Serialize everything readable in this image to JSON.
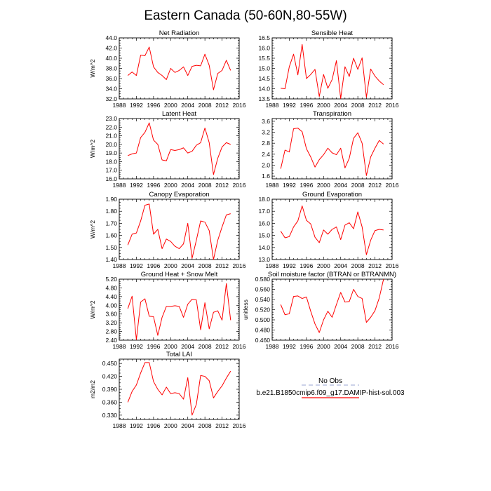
{
  "figure": {
    "title": "Eastern Canada (50-60N,80-55W)"
  },
  "legend": {
    "entries": [
      {
        "label": "No Obs",
        "color": "#aeb7dc",
        "dash": true
      },
      {
        "label": "b.e21.B1850cmip6.f09_g17.DAMIP-hist-sol.003",
        "color": "#ff0000",
        "dash": false
      }
    ]
  },
  "chart_data": [
    {
      "type": "line",
      "title": "Net Radiation",
      "xlabel": "",
      "ylabel": "W/m^2",
      "xlim": [
        1988,
        2016
      ],
      "xticks": [
        1988,
        1992,
        1996,
        2000,
        2004,
        2008,
        2012,
        2016
      ],
      "ylim": [
        32.0,
        44.0
      ],
      "yticks": [
        "32.0",
        "34.0",
        "36.0",
        "38.0",
        "40.0",
        "42.0",
        "44.0"
      ],
      "grid": false,
      "x": [
        1990,
        1991,
        1992,
        1993,
        1994,
        1995,
        1996,
        1997,
        1998,
        1999,
        2000,
        2001,
        2002,
        2003,
        2004,
        2005,
        2006,
        2007,
        2008,
        2009,
        2010,
        2011,
        2012,
        2013,
        2014
      ],
      "series": [
        {
          "color": "#ff0000",
          "values": [
            36.6,
            37.3,
            36.6,
            40.6,
            40.5,
            42.2,
            38.3,
            37.2,
            36.6,
            35.8,
            38.0,
            37.2,
            37.6,
            38.3,
            36.6,
            38.4,
            38.6,
            38.5,
            40.8,
            38.6,
            33.8,
            37.0,
            37.6,
            39.6,
            37.6
          ]
        }
      ]
    },
    {
      "type": "line",
      "title": "Sensible Heat",
      "xlabel": "",
      "ylabel": "",
      "xlim": [
        1988,
        2016
      ],
      "xticks": [
        1988,
        1992,
        1996,
        2000,
        2004,
        2008,
        2012,
        2016
      ],
      "ylim": [
        13.5,
        16.5
      ],
      "yticks": [
        "13.5",
        "14.0",
        "14.5",
        "15.0",
        "15.5",
        "16.0",
        "16.5"
      ],
      "grid": false,
      "x": [
        1990,
        1991,
        1992,
        1993,
        1994,
        1995,
        1996,
        1997,
        1998,
        1999,
        2000,
        2001,
        2002,
        2003,
        2004,
        2005,
        2006,
        2007,
        2008,
        2009,
        2010,
        2011,
        2012,
        2013,
        2014
      ],
      "series": [
        {
          "color": "#ff0000",
          "values": [
            14.02,
            14.0,
            15.08,
            15.7,
            14.68,
            16.18,
            14.5,
            14.7,
            14.95,
            13.62,
            14.7,
            14.02,
            14.45,
            15.38,
            13.52,
            15.08,
            14.6,
            15.5,
            14.95,
            15.52,
            13.58,
            14.97,
            14.62,
            14.38,
            14.2
          ]
        }
      ]
    },
    {
      "type": "line",
      "title": "Latent Heat",
      "xlabel": "",
      "ylabel": "W/m^2",
      "xlim": [
        1988,
        2016
      ],
      "xticks": [
        1988,
        1992,
        1996,
        2000,
        2004,
        2008,
        2012,
        2016
      ],
      "ylim": [
        16.0,
        23.0
      ],
      "yticks": [
        "16.0",
        "17.0",
        "18.0",
        "19.0",
        "20.0",
        "21.0",
        "22.0",
        "23.0"
      ],
      "grid": false,
      "x": [
        1990,
        1991,
        1992,
        1993,
        1994,
        1995,
        1996,
        1997,
        1998,
        1999,
        2000,
        2001,
        2002,
        2003,
        2004,
        2005,
        2006,
        2007,
        2008,
        2009,
        2010,
        2011,
        2012,
        2013,
        2014
      ],
      "series": [
        {
          "color": "#ff0000",
          "values": [
            18.7,
            18.9,
            19.0,
            20.8,
            21.4,
            22.5,
            20.5,
            20.0,
            18.2,
            18.1,
            19.4,
            19.3,
            19.4,
            19.6,
            19.0,
            19.2,
            19.9,
            20.2,
            21.9,
            20.2,
            16.5,
            18.4,
            19.7,
            20.2,
            20.0
          ]
        }
      ]
    },
    {
      "type": "line",
      "title": "Transpiration",
      "xlabel": "",
      "ylabel": "",
      "xlim": [
        1988,
        2016
      ],
      "xticks": [
        1988,
        1992,
        1996,
        2000,
        2004,
        2008,
        2012,
        2016
      ],
      "ylim": [
        1.5,
        3.7
      ],
      "yticks": [
        "1.6",
        "2.0",
        "2.4",
        "2.8",
        "3.2",
        "3.6"
      ],
      "grid": false,
      "x": [
        1990,
        1991,
        1992,
        1993,
        1994,
        1995,
        1996,
        1997,
        1998,
        1999,
        2000,
        2001,
        2002,
        2003,
        2004,
        2005,
        2006,
        2007,
        2008,
        2009,
        2010,
        2011,
        2012,
        2013,
        2014
      ],
      "series": [
        {
          "color": "#ff0000",
          "values": [
            1.87,
            2.55,
            2.48,
            3.33,
            3.35,
            3.22,
            2.6,
            2.3,
            1.93,
            2.2,
            2.38,
            2.62,
            2.45,
            2.38,
            2.62,
            1.9,
            2.25,
            2.98,
            3.18,
            2.8,
            1.62,
            2.3,
            2.62,
            2.9,
            2.77
          ]
        }
      ]
    },
    {
      "type": "line",
      "title": "Canopy Evaporation",
      "xlabel": "",
      "ylabel": "W/m^2",
      "xlim": [
        1988,
        2016
      ],
      "xticks": [
        1988,
        1992,
        1996,
        2000,
        2004,
        2008,
        2012,
        2016
      ],
      "ylim": [
        1.4,
        1.9
      ],
      "yticks": [
        "1.40",
        "1.50",
        "1.60",
        "1.70",
        "1.80",
        "1.90"
      ],
      "grid": false,
      "x": [
        1990,
        1991,
        1992,
        1993,
        1994,
        1995,
        1996,
        1997,
        1998,
        1999,
        2000,
        2001,
        2002,
        2003,
        2004,
        2005,
        2006,
        2007,
        2008,
        2009,
        2010,
        2011,
        2012,
        2013,
        2014
      ],
      "series": [
        {
          "color": "#ff0000",
          "values": [
            1.52,
            1.61,
            1.62,
            1.72,
            1.85,
            1.86,
            1.61,
            1.65,
            1.49,
            1.57,
            1.55,
            1.51,
            1.49,
            1.53,
            1.7,
            1.41,
            1.56,
            1.72,
            1.71,
            1.64,
            1.4,
            1.56,
            1.67,
            1.77,
            1.78
          ]
        }
      ]
    },
    {
      "type": "line",
      "title": "Ground Evaporation",
      "xlabel": "",
      "ylabel": "",
      "xlim": [
        1988,
        2016
      ],
      "xticks": [
        1988,
        1992,
        1996,
        2000,
        2004,
        2008,
        2012,
        2016
      ],
      "ylim": [
        13.0,
        18.0
      ],
      "yticks": [
        "13.0",
        "14.0",
        "15.0",
        "16.0",
        "17.0",
        "18.0"
      ],
      "grid": false,
      "x": [
        1990,
        1991,
        1992,
        1993,
        1994,
        1995,
        1996,
        1997,
        1998,
        1999,
        2000,
        2001,
        2002,
        2003,
        2004,
        2005,
        2006,
        2007,
        2008,
        2009,
        2010,
        2011,
        2012,
        2013,
        2014
      ],
      "series": [
        {
          "color": "#ff0000",
          "values": [
            15.35,
            14.8,
            14.9,
            15.7,
            16.2,
            17.45,
            16.25,
            15.95,
            14.85,
            14.4,
            15.45,
            15.1,
            15.5,
            15.7,
            14.65,
            15.85,
            16.05,
            15.55,
            16.95,
            15.7,
            13.4,
            14.6,
            15.4,
            15.5,
            15.45
          ]
        }
      ]
    },
    {
      "type": "line",
      "title": "Ground Heat + Snow Melt",
      "xlabel": "",
      "ylabel": "W/m^2",
      "xlim": [
        1988,
        2016
      ],
      "xticks": [
        1988,
        1992,
        1996,
        2000,
        2004,
        2008,
        2012,
        2016
      ],
      "ylim": [
        2.4,
        5.2
      ],
      "yticks": [
        "2.40",
        "2.80",
        "3.20",
        "3.60",
        "4.00",
        "4.40",
        "4.80",
        "5.20"
      ],
      "grid": false,
      "x": [
        1990,
        1991,
        1992,
        1993,
        1994,
        1995,
        1996,
        1997,
        1998,
        1999,
        2000,
        2001,
        2002,
        2003,
        2004,
        2005,
        2006,
        2007,
        2008,
        2009,
        2010,
        2011,
        2012,
        2013,
        2014
      ],
      "series": [
        {
          "color": "#ff0000",
          "values": [
            3.85,
            4.42,
            2.42,
            4.15,
            4.3,
            3.5,
            3.48,
            2.62,
            3.45,
            3.95,
            3.95,
            3.98,
            3.95,
            3.45,
            4.05,
            4.28,
            4.25,
            2.88,
            4.12,
            2.92,
            3.68,
            3.75,
            3.32,
            5.0,
            3.32
          ]
        }
      ]
    },
    {
      "type": "line",
      "title": "Soil moisture factor (BTRAN or BTRANMN)",
      "xlabel": "",
      "ylabel": "unitless",
      "xlim": [
        1988,
        2016
      ],
      "xticks": [
        1988,
        1992,
        1996,
        2000,
        2004,
        2008,
        2012,
        2016
      ],
      "ylim": [
        0.46,
        0.58
      ],
      "yticks": [
        "0.460",
        "0.480",
        "0.500",
        "0.520",
        "0.540",
        "0.560",
        "0.580"
      ],
      "grid": false,
      "x": [
        1990,
        1991,
        1992,
        1993,
        1994,
        1995,
        1996,
        1997,
        1998,
        1999,
        2000,
        2001,
        2002,
        2003,
        2004,
        2005,
        2006,
        2007,
        2008,
        2009,
        2010,
        2011,
        2012,
        2013,
        2014
      ],
      "series": [
        {
          "color": "#ff0000",
          "values": [
            0.53,
            0.51,
            0.512,
            0.546,
            0.547,
            0.542,
            0.545,
            0.517,
            0.492,
            0.475,
            0.5,
            0.517,
            0.505,
            0.53,
            0.554,
            0.535,
            0.536,
            0.56,
            0.546,
            0.542,
            0.495,
            0.505,
            0.518,
            0.543,
            0.58
          ]
        }
      ]
    },
    {
      "type": "line",
      "title": "Total LAI",
      "xlabel": "",
      "ylabel": "m2/m2",
      "xlim": [
        1988,
        2016
      ],
      "xticks": [
        1988,
        1992,
        1996,
        2000,
        2004,
        2008,
        2012,
        2016
      ],
      "ylim": [
        0.32,
        0.46
      ],
      "yticks": [
        "0.330",
        "0.360",
        "0.390",
        "0.420",
        "0.450"
      ],
      "grid": false,
      "x": [
        1990,
        1991,
        1992,
        1993,
        1994,
        1995,
        1996,
        1997,
        1998,
        1999,
        2000,
        2001,
        2002,
        2003,
        2004,
        2005,
        2006,
        2007,
        2008,
        2009,
        2010,
        2011,
        2012,
        2013,
        2014
      ],
      "series": [
        {
          "color": "#ff0000",
          "values": [
            0.36,
            0.385,
            0.4,
            0.428,
            0.452,
            0.452,
            0.408,
            0.39,
            0.377,
            0.395,
            0.38,
            0.382,
            0.38,
            0.367,
            0.417,
            0.33,
            0.355,
            0.422,
            0.42,
            0.41,
            0.37,
            0.385,
            0.398,
            0.416,
            0.432
          ]
        }
      ]
    }
  ]
}
